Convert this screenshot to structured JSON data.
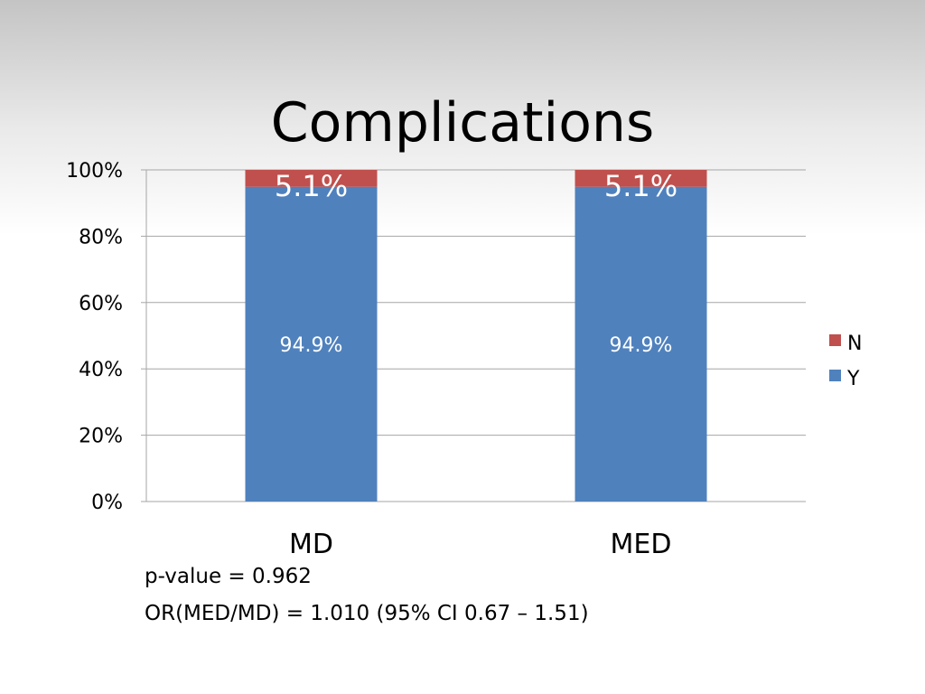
{
  "slide": {
    "title": "Complications",
    "notes": [
      "p-value = 0.962",
      "OR(MED/MD) = 1.010 (95% CI 0.67 – 1.51)"
    ]
  },
  "chart_data": {
    "type": "bar",
    "stacked": true,
    "percent": true,
    "categories": [
      "MD",
      "MED"
    ],
    "series": [
      {
        "name": "Y",
        "values": [
          94.9,
          94.9
        ],
        "labels": [
          "94.9%",
          "94.9%"
        ],
        "color": "#4f81bd"
      },
      {
        "name": "N",
        "values": [
          5.1,
          5.1
        ],
        "labels": [
          "5.1%",
          "5.1%"
        ],
        "color": "#c0504d"
      }
    ],
    "ylim": [
      0,
      100
    ],
    "yticks": [
      "0%",
      "20%",
      "40%",
      "60%",
      "80%",
      "100%"
    ],
    "grid": true,
    "legend": {
      "position": "right",
      "order": [
        "N",
        "Y"
      ]
    },
    "title": "Complications",
    "xlabel": "",
    "ylabel": ""
  }
}
